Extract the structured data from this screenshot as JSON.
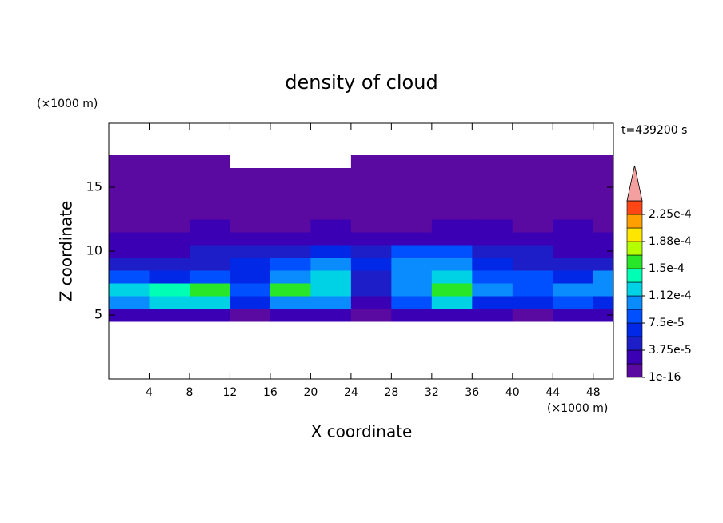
{
  "chart_data": {
    "type": "contour",
    "title": "density of cloud",
    "time_label": "t=439200 s",
    "x_label": "X coordinate",
    "y_label": "Z coordinate",
    "x_unit": "(×1000 m)",
    "y_unit": "(×1000 m)",
    "xlim": [
      0,
      50
    ],
    "ylim": [
      0,
      20
    ],
    "xticks": [
      4,
      8,
      12,
      16,
      20,
      24,
      28,
      32,
      36,
      40,
      44,
      48
    ],
    "yticks": [
      5,
      10,
      15
    ],
    "x": [
      2,
      6,
      10,
      14,
      18,
      22,
      26,
      30,
      34,
      38,
      42,
      46,
      50
    ],
    "z": [
      5,
      6,
      7,
      8,
      9,
      10,
      11,
      12,
      13,
      14,
      15,
      16,
      17
    ],
    "values": [
      [
        2.5e-05,
        3e-05,
        3e-05,
        1e-06,
        2.5e-05,
        3e-05,
        1e-06,
        2.5e-05,
        3e-05,
        2.5e-05,
        1e-06,
        2.5e-05,
        2.5e-05
      ],
      [
        0.0001,
        0.00012,
        0.00012,
        6e-05,
        0.0001,
        0.0001,
        3e-05,
        8e-05,
        0.00012,
        6e-05,
        6e-05,
        8e-05,
        6e-05
      ],
      [
        0.00012,
        0.00014,
        0.00016,
        8e-05,
        0.00015,
        0.00013,
        4e-05,
        0.0001,
        0.00015,
        0.0001,
        8e-05,
        0.0001,
        0.00011
      ],
      [
        9e-05,
        6e-05,
        8e-05,
        6e-05,
        0.0001,
        0.00012,
        4e-05,
        0.0001,
        0.00012,
        8e-05,
        8e-05,
        6e-05,
        0.0001
      ],
      [
        4e-05,
        4e-05,
        4e-05,
        6e-05,
        8e-05,
        0.0001,
        6e-05,
        0.0001,
        0.0001,
        6e-05,
        4e-05,
        4e-05,
        4e-05
      ],
      [
        2.5e-05,
        2.5e-05,
        4e-05,
        4e-05,
        4e-05,
        6e-05,
        4e-05,
        8e-05,
        8e-05,
        4e-05,
        4e-05,
        2.5e-05,
        2.5e-05
      ],
      [
        2.5e-05,
        2.5e-05,
        2.5e-05,
        2.5e-05,
        2.5e-05,
        2.5e-05,
        2.5e-05,
        2.5e-05,
        2.5e-05,
        2.5e-05,
        2.5e-05,
        2.5e-05,
        2.5e-05
      ],
      [
        1e-06,
        1e-06,
        2e-05,
        1e-06,
        1e-06,
        2e-05,
        1e-06,
        1e-06,
        2e-05,
        2e-05,
        1e-06,
        2e-05,
        1e-06
      ],
      [
        1e-06,
        1e-06,
        1e-06,
        1e-06,
        1e-06,
        1e-06,
        1e-06,
        1e-06,
        1e-06,
        1e-06,
        1e-06,
        1e-06,
        1e-06
      ],
      [
        1e-06,
        1e-06,
        1e-06,
        1e-06,
        1e-06,
        1e-06,
        1e-06,
        1e-06,
        1e-06,
        1e-06,
        1e-06,
        1e-06,
        1e-06
      ],
      [
        1e-06,
        1e-06,
        1e-06,
        1e-06,
        1e-06,
        1e-06,
        1e-06,
        1e-06,
        1e-06,
        1e-06,
        1e-06,
        1e-06,
        1e-06
      ],
      [
        1e-06,
        1e-06,
        1e-06,
        1e-06,
        1e-06,
        1e-06,
        1e-06,
        1e-06,
        1e-06,
        1e-06,
        1e-06,
        1e-06,
        1e-06
      ],
      [
        1e-06,
        1e-06,
        1e-06,
        null,
        null,
        null,
        1e-06,
        1e-06,
        1e-06,
        1e-06,
        1e-06,
        1e-06,
        1e-06
      ]
    ],
    "levels": [
      1e-16,
      1.875e-05,
      3.75e-05,
      5.625e-05,
      7.5e-05,
      9.375e-05,
      0.0001125,
      0.00013125,
      0.00015,
      0.00016875,
      0.0001875,
      0.00020625,
      0.000225,
      0.00024375
    ],
    "colors": [
      "#5a0aa0",
      "#3c00b4",
      "#1e1ec8",
      "#0028e6",
      "#0050ff",
      "#0a8cff",
      "#00d2e6",
      "#00ffb4",
      "#28e628",
      "#b4ff00",
      "#ffe600",
      "#ffa000",
      "#ff4614"
    ],
    "extend_color": "#f4a0a0",
    "colorbar_ticks": [
      1e-16,
      {
        "value": 3.75e-05,
        "label": "3.75e-5"
      },
      {
        "value": 7.5e-05,
        "label": "7.5e-5"
      },
      {
        "value": 0.0001125,
        "label": "1.12e-4"
      },
      {
        "value": 0.00015,
        "label": "1.5e-4"
      },
      {
        "value": 0.0001875,
        "label": "1.88e-4"
      },
      {
        "value": 0.000225,
        "label": "2.25e-4"
      }
    ]
  }
}
